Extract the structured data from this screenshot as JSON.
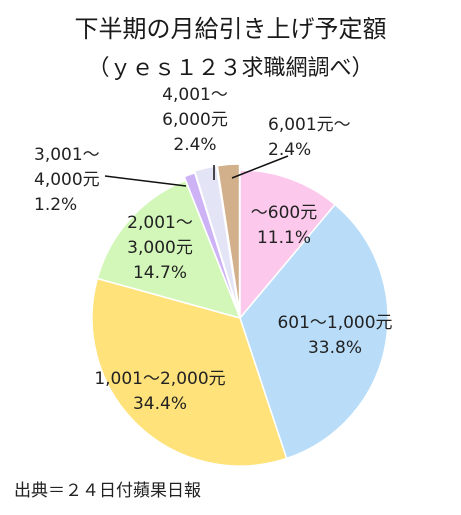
{
  "chart_data": {
    "type": "pie",
    "title": "下半期の月給引き上げ予定額",
    "subtitle": "（ｙｅｓ１２３求職網調べ）",
    "start_angle_deg": 0,
    "direction": "clockwise",
    "slices": [
      {
        "label": "～600元",
        "value": 11.1,
        "value_label": "11.1%",
        "color": "#fcc8ec"
      },
      {
        "label": "601～1,000元",
        "value": 33.8,
        "value_label": "33.8%",
        "color": "#b9ddf8"
      },
      {
        "label": "1,001～2,000元",
        "value": 34.4,
        "value_label": "34.4%",
        "color": "#ffe27a"
      },
      {
        "label": "2,001～\n3,000元",
        "value": 14.7,
        "value_label": "14.7%",
        "color": "#d2f7b9"
      },
      {
        "label": "3,001～\n4,000元",
        "value": 1.2,
        "value_label": "1.2%",
        "color": "#cdb3f6"
      },
      {
        "label": "4,001～\n6,000元",
        "value": 2.4,
        "value_label": "2.4%",
        "color": "#e4e4f7"
      },
      {
        "label": "6,001元～",
        "value": 2.4,
        "value_label": "2.4%",
        "color": "#d3b08c"
      }
    ]
  },
  "source": "出典＝２４日付蘋果日報"
}
